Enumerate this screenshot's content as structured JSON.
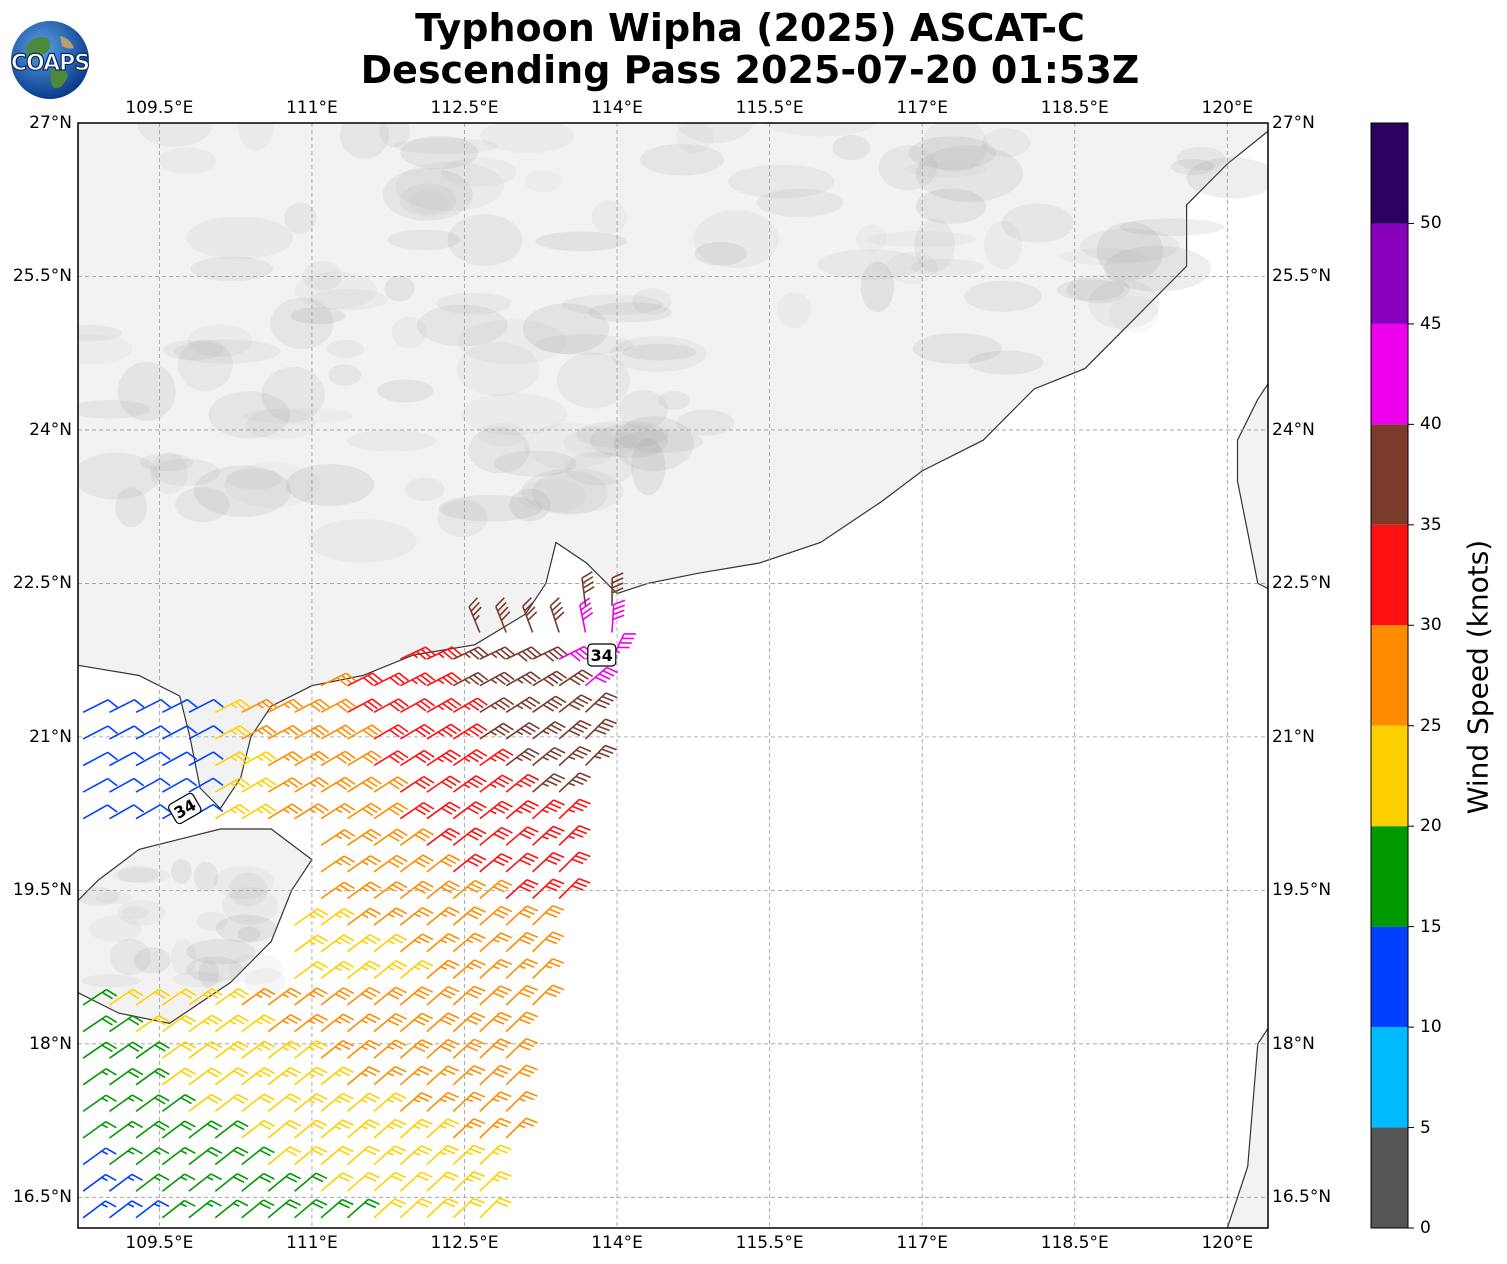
{
  "title_line1": "Typhoon Wipha (2025) ASCAT-C",
  "title_line2": "Descending Pass 2025-07-20 01:53Z",
  "logo_text": "COAPS",
  "map": {
    "lon_min": 108.7,
    "lon_max": 120.4,
    "lat_min": 16.2,
    "lat_max": 27.0,
    "lon_ticks": [
      "109.5°E",
      "111°E",
      "112.5°E",
      "114°E",
      "115.5°E",
      "117°E",
      "118.5°E",
      "120°E"
    ],
    "lat_ticks": [
      "27°N",
      "25.5°N",
      "24°N",
      "22.5°N",
      "21°N",
      "19.5°N",
      "18°N",
      "16.5°N"
    ],
    "lon_tick_values": [
      109.5,
      111,
      112.5,
      114,
      115.5,
      117,
      118.5,
      120
    ],
    "lat_tick_values": [
      27,
      25.5,
      24,
      22.5,
      21,
      19.5,
      18,
      16.5
    ],
    "grid": true,
    "land_color": "#f2f2f2",
    "ocean_color": "#ffffff",
    "coastline_color": "#333333"
  },
  "wind_radius_labels": [
    {
      "text": "34",
      "lon": 113.85,
      "lat": 21.8
    },
    {
      "text": "34",
      "lon": 109.75,
      "lat": 20.3
    }
  ],
  "colorbar": {
    "title": "Wind Speed (knots)",
    "bounds": [
      0,
      5,
      10,
      15,
      20,
      25,
      30,
      35,
      40,
      45,
      50
    ],
    "tick_labels": [
      "0",
      "5",
      "10",
      "15",
      "20",
      "25",
      "30",
      "35",
      "40",
      "45",
      "50"
    ],
    "colors": [
      "#555555",
      "#00bbff",
      "#0040ff",
      "#009900",
      "#ffd000",
      "#ff8c00",
      "#ff1010",
      "#7a3b2b",
      "#ee00ee",
      "#8800bb",
      "#2a0060"
    ]
  }
}
